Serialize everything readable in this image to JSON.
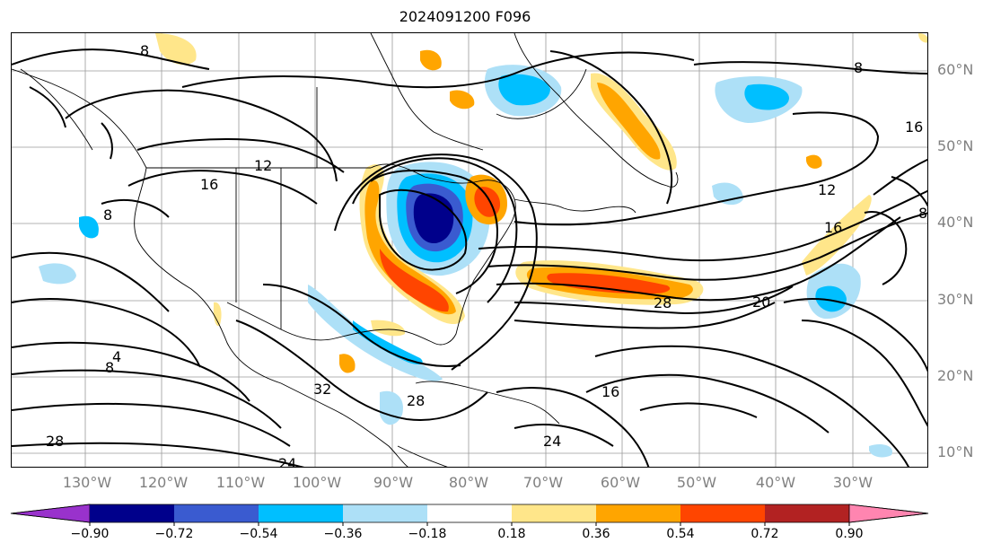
{
  "title": "2024091200 F096",
  "lat_labels": [
    "60°N",
    "50°N",
    "40°N",
    "30°N",
    "20°N",
    "10°N"
  ],
  "lon_labels": [
    "130°W",
    "120°W",
    "110°W",
    "100°W",
    "90°W",
    "80°W",
    "70°W",
    "60°W",
    "50°W",
    "40°W",
    "30°W"
  ],
  "contour_labels": [
    "8",
    "16",
    "12",
    "8",
    "16",
    "12",
    "16",
    "28",
    "20",
    "4",
    "8",
    "8",
    "28",
    "32",
    "28",
    "24",
    "24",
    "16",
    "8"
  ],
  "colorbar": {
    "ticks": [
      "−0.90",
      "−0.72",
      "−0.54",
      "−0.36",
      "−0.18",
      "0.18",
      "0.36",
      "0.54",
      "0.72",
      "0.90"
    ],
    "colors": [
      "#9932cc",
      "#00008b",
      "#3a5bd0",
      "#00bfff",
      "#ade0f7",
      "#ffffff",
      "#ffe68a",
      "#ffa500",
      "#ff4500",
      "#b22222",
      "#ff85b0"
    ]
  }
}
